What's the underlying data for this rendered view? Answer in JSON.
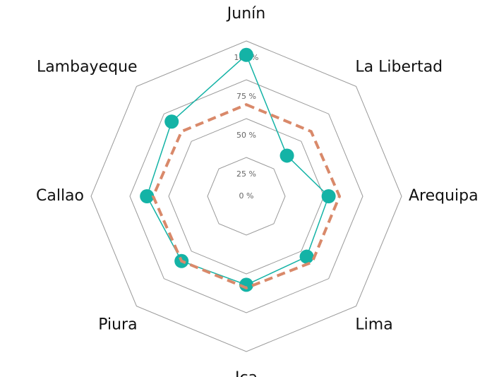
{
  "chart_data": {
    "type": "radar",
    "categories": [
      "Junín",
      "La Libertad",
      "Arequipa",
      "Lima",
      "Ica",
      "Piura",
      "Callao",
      "Lambayeque"
    ],
    "series": [
      {
        "color": "#14b3a6",
        "values": [
          91,
          37,
          53,
          55,
          57,
          59,
          64,
          68
        ]
      },
      {
        "color": "#d9896a",
        "values": [
          59,
          59,
          60,
          60,
          59,
          59,
          60,
          59
        ]
      }
    ],
    "ylim": [
      0,
      100
    ],
    "yticks": [
      {
        "value": 0,
        "label": "0 %"
      },
      {
        "value": 25,
        "label": "25 %"
      },
      {
        "value": 50,
        "label": "50 %"
      },
      {
        "value": 75,
        "label": "75 %"
      },
      {
        "value": 100,
        "label": "100 %"
      }
    ],
    "grid": true
  }
}
